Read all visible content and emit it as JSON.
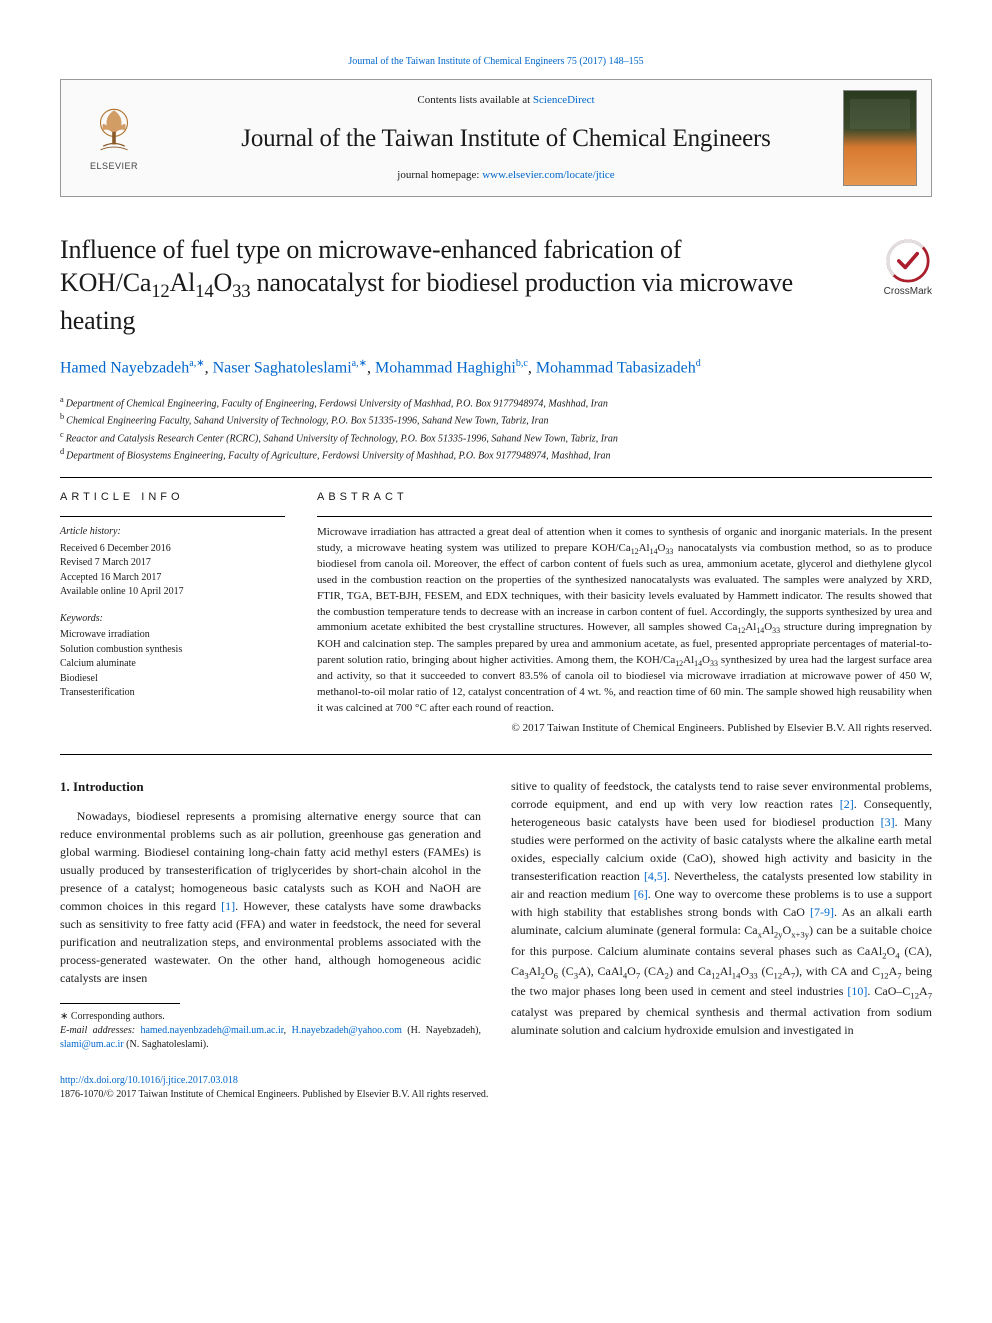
{
  "top_link": {
    "prefix": "",
    "text": "Journal of the Taiwan Institute of Chemical Engineers 75 (2017) 148–155",
    "href": "#"
  },
  "header": {
    "contents_prefix": "Contents lists available at ",
    "contents_link": "ScienceDirect",
    "journal_name": "Journal of the Taiwan Institute of Chemical Engineers",
    "homepage_prefix": "journal homepage: ",
    "homepage_link": "www.elsevier.com/locate/jtice",
    "elsevier_label": "ELSEVIER"
  },
  "crossmark": {
    "label": "CrossMark"
  },
  "title_html": "Influence of fuel type on microwave-enhanced fabrication of KOH/Ca<sub>12</sub>Al<sub>14</sub>O<sub>33</sub> nanocatalyst for biodiesel production via microwave heating",
  "authors_html": "<a href=\"#\" data-name=\"author-link\" data-interactable=\"true\">Hamed Nayebzadeh</a><sup data-name=\"author-affil-sup\" data-interactable=\"false\">a,∗</sup>, <a href=\"#\" data-name=\"author-link\" data-interactable=\"true\">Naser Saghatoleslami</a><sup data-name=\"author-affil-sup\" data-interactable=\"false\">a,∗</sup>, <a href=\"#\" data-name=\"author-link\" data-interactable=\"true\">Mohammad Haghighi</a><sup data-name=\"author-affil-sup\" data-interactable=\"false\">b,c</sup>, <a href=\"#\" data-name=\"author-link\" data-interactable=\"true\">Mohammad Tabasizadeh</a><sup data-name=\"author-affil-sup\" data-interactable=\"false\">d</sup>",
  "affiliations": [
    {
      "sup": "a",
      "text": "Department of Chemical Engineering, Faculty of Engineering, Ferdowsi University of Mashhad, P.O. Box 9177948974, Mashhad, Iran"
    },
    {
      "sup": "b",
      "text": "Chemical Engineering Faculty, Sahand University of Technology, P.O. Box 51335-1996, Sahand New Town, Tabriz, Iran"
    },
    {
      "sup": "c",
      "text": "Reactor and Catalysis Research Center (RCRC), Sahand University of Technology, P.O. Box 51335-1996, Sahand New Town, Tabriz, Iran"
    },
    {
      "sup": "d",
      "text": "Department of Biosystems Engineering, Faculty of Agriculture, Ferdowsi University of Mashhad, P.O. Box 9177948974, Mashhad, Iran"
    }
  ],
  "article_info": {
    "head": "article info",
    "history_head": "Article history:",
    "history": [
      "Received 6 December 2016",
      "Revised 7 March 2017",
      "Accepted 16 March 2017",
      "Available online 10 April 2017"
    ],
    "keywords_head": "Keywords:",
    "keywords": [
      "Microwave irradiation",
      "Solution combustion synthesis",
      "Calcium aluminate",
      "Biodiesel",
      "Transesterification"
    ]
  },
  "abstract": {
    "head": "abstract",
    "body_html": "Microwave irradiation has attracted a great deal of attention when it comes to synthesis of organic and inorganic materials. In the present study, a microwave heating system was utilized to prepare KOH/Ca<sub>12</sub>Al<sub>14</sub>O<sub>33</sub> nanocatalysts via combustion method, so as to produce biodiesel from canola oil. Moreover, the effect of carbon content of fuels such as urea, ammonium acetate, glycerol and diethylene glycol used in the combustion reaction on the properties of the synthesized nanocatalysts was evaluated. The samples were analyzed by XRD, FTIR, TGA, BET-BJH, FESEM, and EDX techniques, with their basicity levels evaluated by Hammett indicator. The results showed that the combustion temperature tends to decrease with an increase in carbon content of fuel. Accordingly, the supports synthesized by urea and ammonium acetate exhibited the best crystalline structures. However, all samples showed Ca<sub>12</sub>Al<sub>14</sub>O<sub>33</sub> structure during impregnation by KOH and calcination step. The samples prepared by urea and ammonium acetate, as fuel, presented appropriate percentages of material-to-parent solution ratio, bringing about higher activities. Among them, the KOH/Ca<sub>12</sub>Al<sub>14</sub>O<sub>33</sub> synthesized by urea had the largest surface area and activity, so that it succeeded to convert 83.5% of canola oil to biodiesel via microwave irradiation at microwave power of 450 W, methanol-to-oil molar ratio of 12, catalyst concentration of 4 wt. %, and reaction time of 60 min. The sample showed high reusability when it was calcined at 700 °C after each round of reaction.",
    "copyright": "© 2017 Taiwan Institute of Chemical Engineers. Published by Elsevier B.V. All rights reserved."
  },
  "body": {
    "section_heading": "1. Introduction",
    "col1_html": "Nowadays, biodiesel represents a promising alternative energy source that can reduce environmental problems such as air pollution, greenhouse gas generation and global warming. Biodiesel containing long-chain fatty acid methyl esters (FAMEs) is usually produced by transesterification of triglycerides by short-chain alcohol in the presence of a catalyst; homogeneous basic catalysts such as KOH and NaOH are common choices in this regard <a href=\"#\" data-name=\"citation-link\" data-interactable=\"true\">[1]</a>. However, these catalysts have some drawbacks such as sensitivity to free fatty acid (FFA) and water in feedstock, the need for several purification and neutralization steps, and environmental problems associated with the process-generated wastewater. On the other hand, although homogeneous acidic catalysts are insen",
    "col2_html": "sitive to quality of feedstock, the catalysts tend to raise sever environmental problems, corrode equipment, and end up with very low reaction rates <a href=\"#\" data-name=\"citation-link\" data-interactable=\"true\">[2]</a>. Consequently, heterogeneous basic catalysts have been used for biodiesel production <a href=\"#\" data-name=\"citation-link\" data-interactable=\"true\">[3]</a>. Many studies were performed on the activity of basic catalysts where the alkaline earth metal oxides, especially calcium oxide (CaO), showed high activity and basicity in the transesterification reaction <a href=\"#\" data-name=\"citation-link\" data-interactable=\"true\">[4,5]</a>. Nevertheless, the catalysts presented low stability in air and reaction medium <a href=\"#\" data-name=\"citation-link\" data-interactable=\"true\">[6]</a>. One way to overcome these problems is to use a support with high stability that establishes strong bonds with CaO <a href=\"#\" data-name=\"citation-link\" data-interactable=\"true\">[7-9]</a>. As an alkali earth aluminate, calcium aluminate (general formula: Ca<sub>x</sub>Al<sub>2y</sub>O<sub>x+3y</sub>) can be a suitable choice for this purpose. Calcium aluminate contains several phases such as CaAl<sub>2</sub>O<sub>4</sub> (CA), Ca<sub>3</sub>Al<sub>2</sub>O<sub>6</sub> (C<sub>3</sub>A), CaAl<sub>4</sub>O<sub>7</sub> (CA<sub>2</sub>) and Ca<sub>12</sub>Al<sub>14</sub>O<sub>33</sub> (C<sub>12</sub>A<sub>7</sub>), with CA and C<sub>12</sub>A<sub>7</sub> being the two major phases long been used in cement and steel industries <a href=\"#\" data-name=\"citation-link\" data-interactable=\"true\">[10]</a>. CaO–C<sub>12</sub>A<sub>7</sub> catalyst was prepared by chemical synthesis and thermal activation from sodium aluminate solution and calcium hydroxide emulsion and investigated in"
  },
  "footnotes": {
    "corr": "∗ Corresponding authors.",
    "email_label": "E-mail addresses:",
    "emails_html": " <a href=\"#\" data-name=\"email-link\" data-interactable=\"true\">hamed.nayenbzadeh@mail.um.ac.ir</a>, <a href=\"#\" data-name=\"email-link\" data-interactable=\"true\">H.nayebzadeh@yahoo.com</a> (H. Nayebzadeh), <a href=\"#\" data-name=\"email-link\" data-interactable=\"true\">slami@um.ac.ir</a> (N. Saghatoleslami)."
  },
  "footer": {
    "doi": "http://dx.doi.org/10.1016/j.jtice.2017.03.018",
    "issn_line": "1876-1070/© 2017 Taiwan Institute of Chemical Engineers. Published by Elsevier B.V. All rights reserved."
  },
  "colors": {
    "link": "#0066cc",
    "text": "#1a1a1a",
    "border": "#999999",
    "background": "#ffffff",
    "cover_top": "#2a3a1e",
    "cover_bot": "#e89850"
  },
  "typography": {
    "title_pt": 26,
    "journal_name_pt": 25,
    "authors_pt": 16,
    "body_pt": 12,
    "abstract_pt": 11,
    "small_pt": 10
  }
}
